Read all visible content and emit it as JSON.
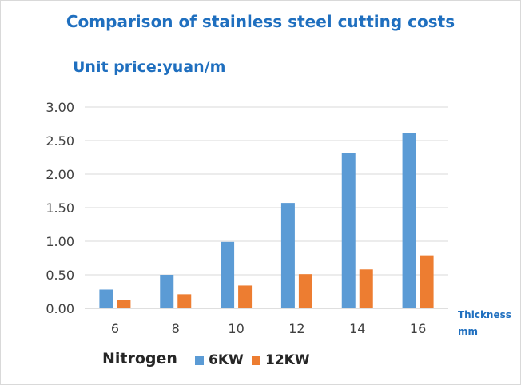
{
  "chart_data": {
    "type": "bar",
    "title": "Comparison of stainless steel cutting costs",
    "subtitle": "Unit price:yuan/m",
    "xlabel_lines": [
      "Thickness",
      "mm"
    ],
    "legend_title": "Nitrogen",
    "categories": [
      "6",
      "8",
      "10",
      "12",
      "14",
      "16"
    ],
    "series": [
      {
        "name": "6KW",
        "color": "#5b9bd5",
        "values": [
          0.28,
          0.5,
          0.99,
          1.57,
          2.32,
          2.61
        ]
      },
      {
        "name": "12KW",
        "color": "#ed7d31",
        "values": [
          0.13,
          0.21,
          0.34,
          0.51,
          0.58,
          0.79
        ]
      }
    ],
    "ylim": [
      0,
      3.0
    ],
    "yticks": [
      "0.00",
      "0.50",
      "1.00",
      "1.50",
      "2.00",
      "2.50",
      "3.00"
    ],
    "grid": true,
    "legend_position": "bottom"
  }
}
